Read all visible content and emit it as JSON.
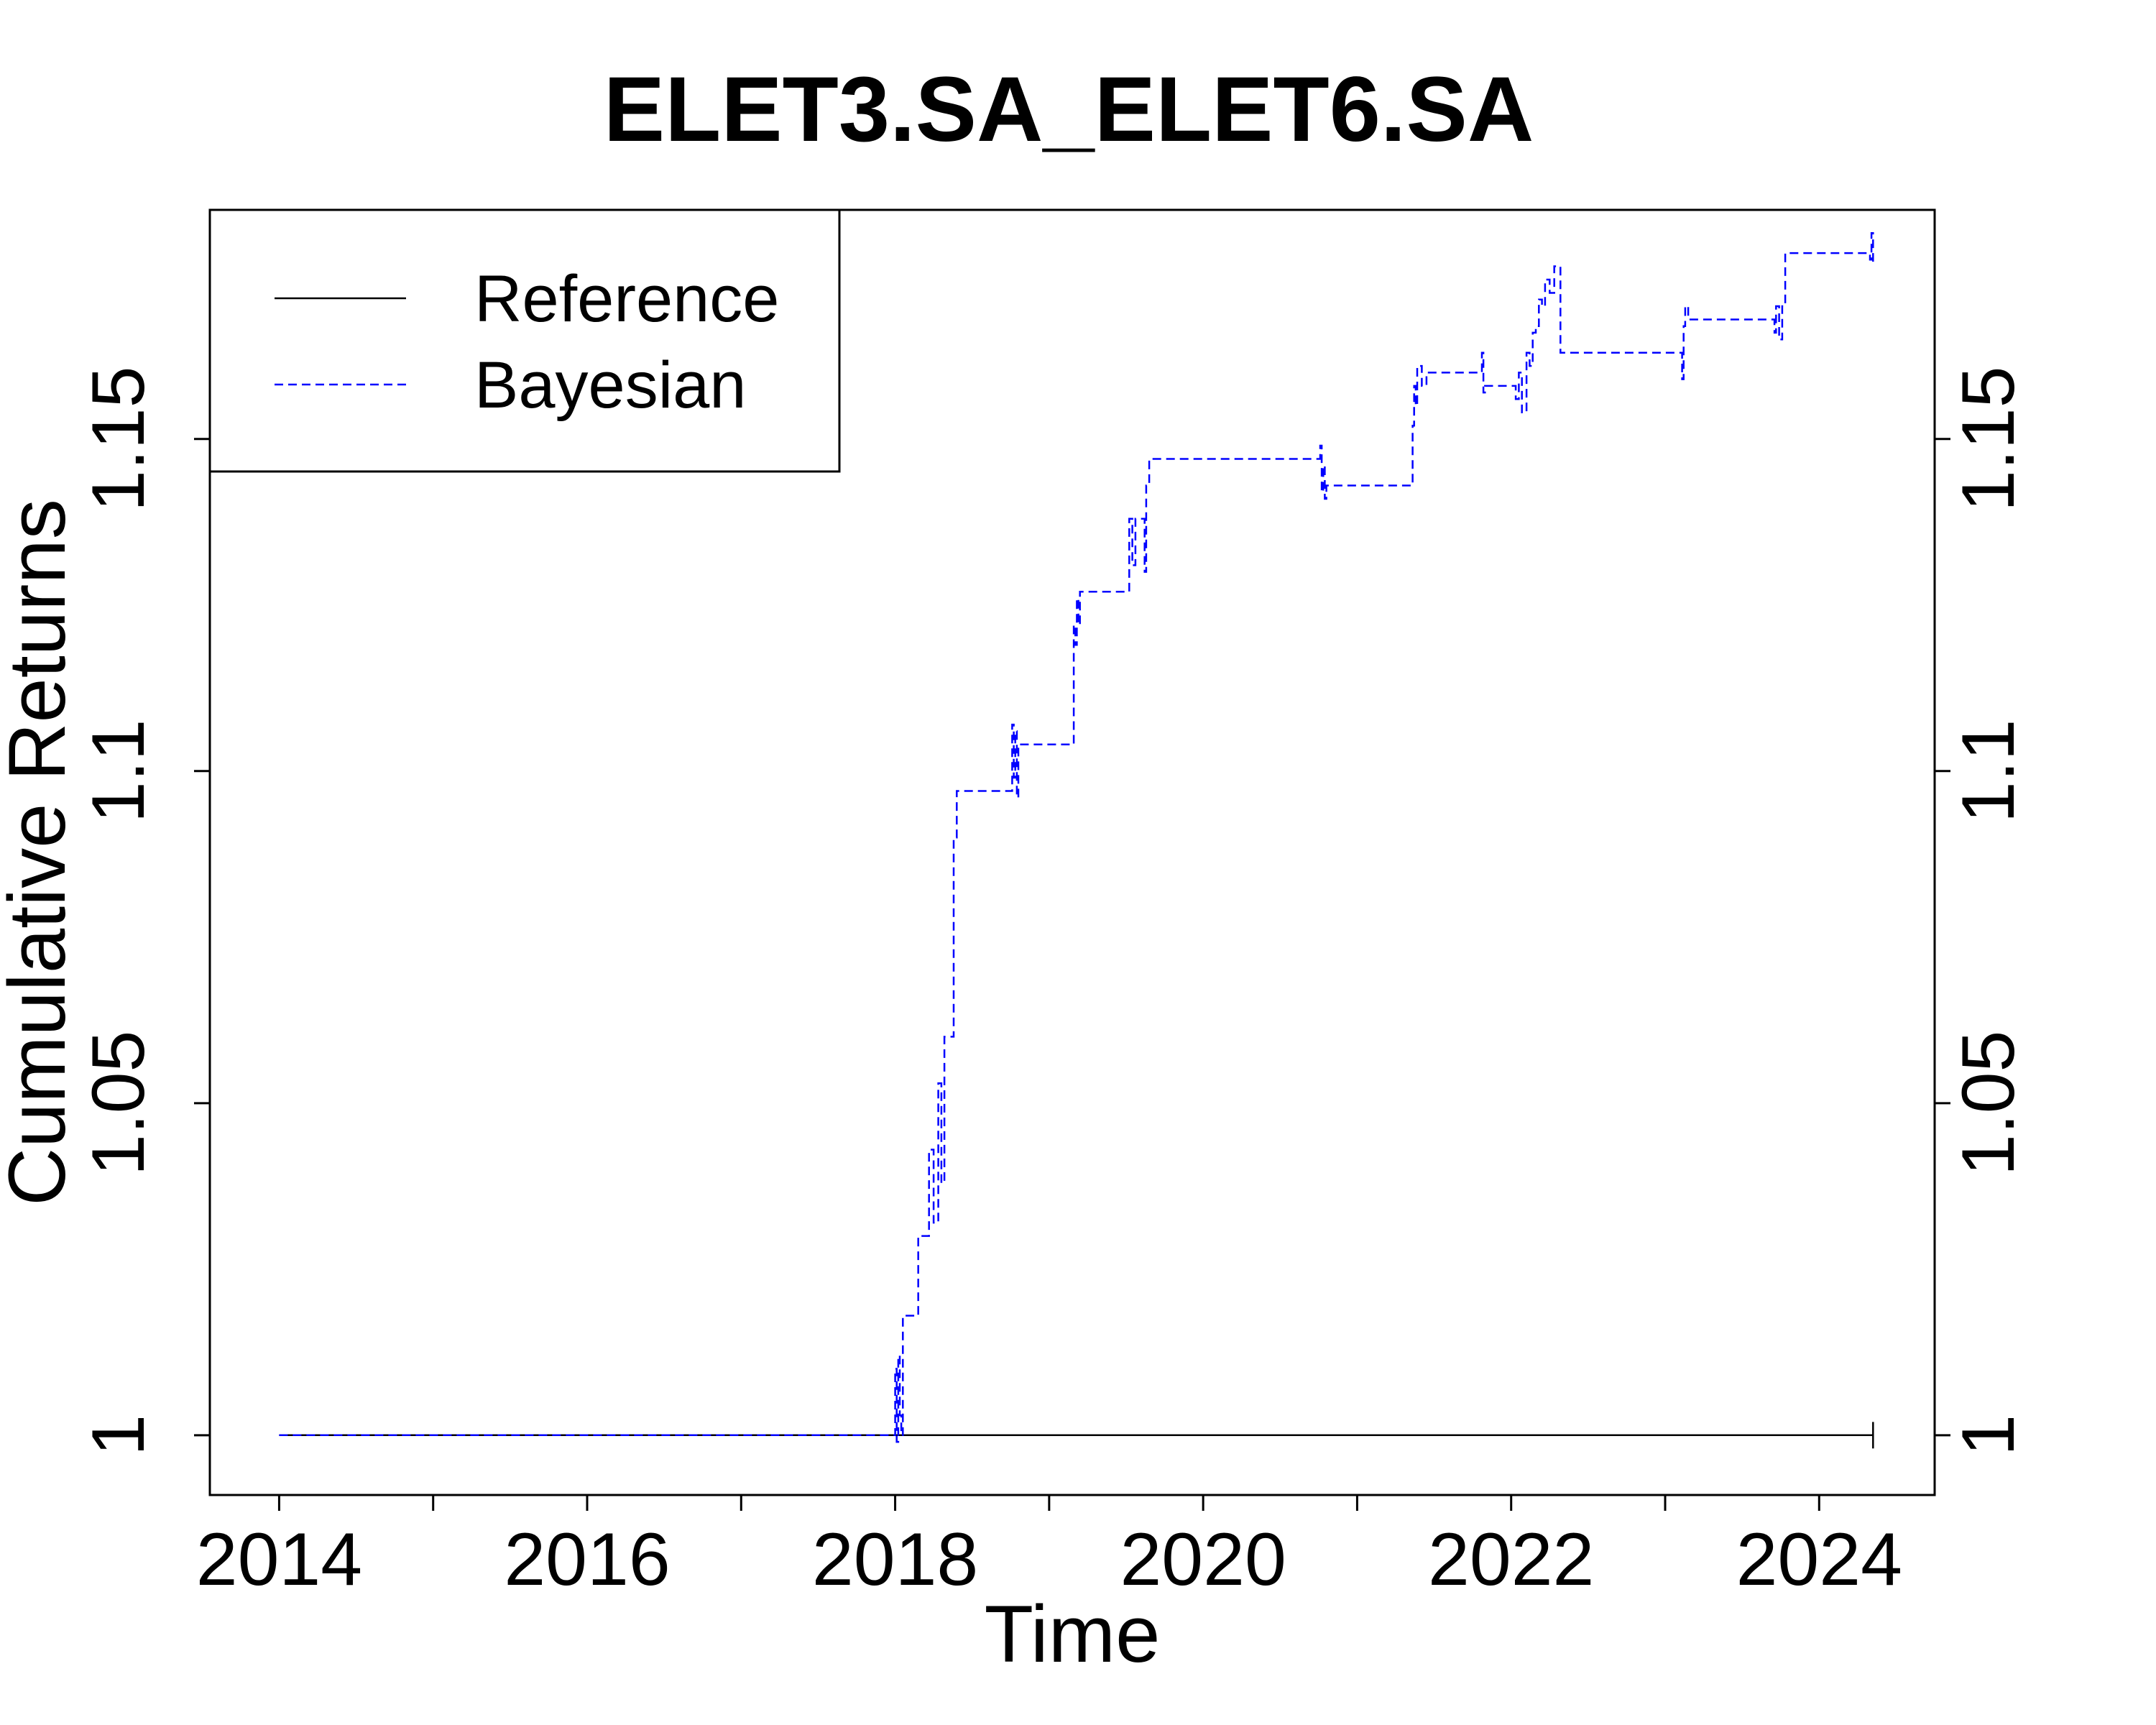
{
  "chart_data": {
    "type": "line",
    "title": "ELET3.SA_ELET6.SA",
    "xlabel": "Time",
    "ylabel": "Cumulative Returns",
    "xlim": [
      2013.55,
      2024.75
    ],
    "ylim": [
      0.991,
      1.1845
    ],
    "x_ticks": [
      2014,
      2015,
      2016,
      2017,
      2018,
      2019,
      2020,
      2021,
      2022,
      2023,
      2024
    ],
    "x_tick_labels": [
      "2014",
      "",
      "2016",
      "",
      "2018",
      "",
      "2020",
      "",
      "2022",
      "",
      "2024"
    ],
    "y_ticks": [
      1,
      1.05,
      1.1,
      1.15
    ],
    "y_tick_labels": [
      "1",
      "1.05",
      "1.1",
      "1.15"
    ],
    "grid": false,
    "legend_position": "top-left",
    "colors": {
      "reference": "#000000",
      "bayesian": "#0000ff"
    },
    "series": [
      {
        "name": "Reference",
        "style": "solid",
        "x": [
          2014.0,
          2024.35,
          2024.35,
          2024.35
        ],
        "y": [
          1.0,
          1.0,
          1.002,
          0.998
        ]
      },
      {
        "name": "Bayesian",
        "style": "dashed",
        "x": [
          2014.0,
          2017.99,
          2018.0,
          2018.01,
          2018.02,
          2018.03,
          2018.04,
          2018.05,
          2018.07,
          2018.15,
          2018.17,
          2018.22,
          2018.25,
          2018.28,
          2018.3,
          2018.32,
          2018.35,
          2018.38,
          2018.4,
          2018.42,
          2018.45,
          2018.75,
          2018.76,
          2018.77,
          2018.78,
          2018.79,
          2018.8,
          2019.15,
          2019.16,
          2019.17,
          2019.18,
          2019.19,
          2019.2,
          2019.5,
          2019.52,
          2019.54,
          2019.56,
          2019.6,
          2019.62,
          2019.63,
          2019.65,
          2020.75,
          2020.76,
          2020.77,
          2020.78,
          2020.79,
          2020.8,
          2021.35,
          2021.36,
          2021.37,
          2021.38,
          2021.39,
          2021.42,
          2021.45,
          2021.8,
          2021.81,
          2021.82,
          2021.83,
          2021.85,
          2022.0,
          2022.03,
          2022.05,
          2022.07,
          2022.1,
          2022.12,
          2022.14,
          2022.16,
          2022.18,
          2022.2,
          2022.22,
          2022.25,
          2022.28,
          2022.3,
          2022.32,
          2023.1,
          2023.11,
          2023.12,
          2023.13,
          2023.15,
          2023.7,
          2023.71,
          2023.72,
          2023.74,
          2023.76,
          2023.78,
          2024.32,
          2024.33,
          2024.34,
          2024.35
        ],
        "y": [
          1.0,
          1.0,
          1.01,
          0.999,
          1.012,
          1.003,
          1.0,
          1.018,
          1.018,
          1.03,
          1.03,
          1.043,
          1.032,
          1.053,
          1.038,
          1.06,
          1.06,
          1.09,
          1.097,
          1.097,
          1.097,
          1.097,
          1.107,
          1.099,
          1.106,
          1.096,
          1.104,
          1.104,
          1.122,
          1.119,
          1.126,
          1.122,
          1.127,
          1.127,
          1.138,
          1.131,
          1.138,
          1.138,
          1.13,
          1.143,
          1.147,
          1.147,
          1.149,
          1.142,
          1.146,
          1.141,
          1.143,
          1.143,
          1.152,
          1.158,
          1.155,
          1.161,
          1.158,
          1.16,
          1.16,
          1.163,
          1.157,
          1.158,
          1.158,
          1.158,
          1.156,
          1.16,
          1.154,
          1.163,
          1.161,
          1.166,
          1.167,
          1.171,
          1.17,
          1.174,
          1.172,
          1.176,
          1.176,
          1.163,
          1.163,
          1.159,
          1.167,
          1.17,
          1.168,
          1.168,
          1.166,
          1.17,
          1.165,
          1.17,
          1.178,
          1.178,
          1.177,
          1.181,
          1.176
        ]
      }
    ]
  }
}
